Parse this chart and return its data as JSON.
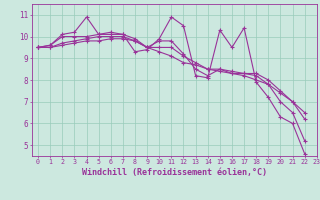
{
  "background_color": "#cce8df",
  "line_color": "#993399",
  "grid_color": "#99ccbb",
  "xlabel": "Windchill (Refroidissement éolien,°C)",
  "xlabel_fontsize": 6.0,
  "xtick_fontsize": 4.8,
  "ytick_fontsize": 5.5,
  "ylim": [
    4.5,
    11.5
  ],
  "xlim": [
    -0.5,
    23
  ],
  "yticks": [
    5,
    6,
    7,
    8,
    9,
    10,
    11
  ],
  "series": [
    [
      9.5,
      9.6,
      10.1,
      10.2,
      10.9,
      10.1,
      10.2,
      10.1,
      9.3,
      9.4,
      9.9,
      10.9,
      10.5,
      8.2,
      8.1,
      10.3,
      9.5,
      10.4,
      7.9,
      7.2,
      6.3,
      6.0,
      4.6
    ],
    [
      9.5,
      9.6,
      10.0,
      10.0,
      10.0,
      10.1,
      10.1,
      10.1,
      9.9,
      9.5,
      9.8,
      9.8,
      9.2,
      8.5,
      8.2,
      8.5,
      8.3,
      8.3,
      8.2,
      7.8,
      7.0,
      6.5,
      5.2
    ],
    [
      9.5,
      9.5,
      9.7,
      9.8,
      9.9,
      10.0,
      10.0,
      10.0,
      9.8,
      9.5,
      9.5,
      9.5,
      9.1,
      8.8,
      8.5,
      8.5,
      8.4,
      8.3,
      8.3,
      8.0,
      7.5,
      7.0,
      6.2
    ],
    [
      9.5,
      9.5,
      9.6,
      9.7,
      9.8,
      9.8,
      9.9,
      9.9,
      9.8,
      9.5,
      9.3,
      9.1,
      8.8,
      8.7,
      8.5,
      8.4,
      8.3,
      8.2,
      8.0,
      7.8,
      7.4,
      7.0,
      6.5
    ]
  ]
}
